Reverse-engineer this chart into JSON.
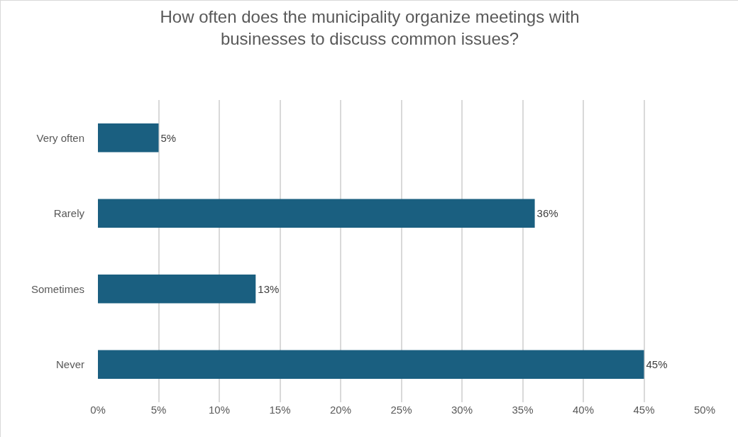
{
  "chart_data": {
    "type": "bar",
    "orientation": "horizontal",
    "title": "How often does the municipality organize meetings with businesses to discuss common issues?",
    "categories": [
      "Very often",
      "Rarely",
      "Sometimes",
      "Never"
    ],
    "values": [
      5,
      36,
      13,
      45
    ],
    "value_labels": [
      "5%",
      "36%",
      "13%",
      "45%"
    ],
    "color": "#1a5f80",
    "xlim": [
      0,
      50
    ],
    "xticks": [
      {
        "value": 0,
        "label": "0%"
      },
      {
        "value": 5,
        "label": "5%"
      },
      {
        "value": 10,
        "label": "10%"
      },
      {
        "value": 15,
        "label": "15%"
      },
      {
        "value": 20,
        "label": "20%"
      },
      {
        "value": 25,
        "label": "25%"
      },
      {
        "value": 30,
        "label": "30%"
      },
      {
        "value": 35,
        "label": "35%"
      },
      {
        "value": 40,
        "label": "40%"
      },
      {
        "value": 45,
        "label": "45%"
      },
      {
        "value": 50,
        "label": "50%"
      }
    ],
    "grid": "x"
  }
}
